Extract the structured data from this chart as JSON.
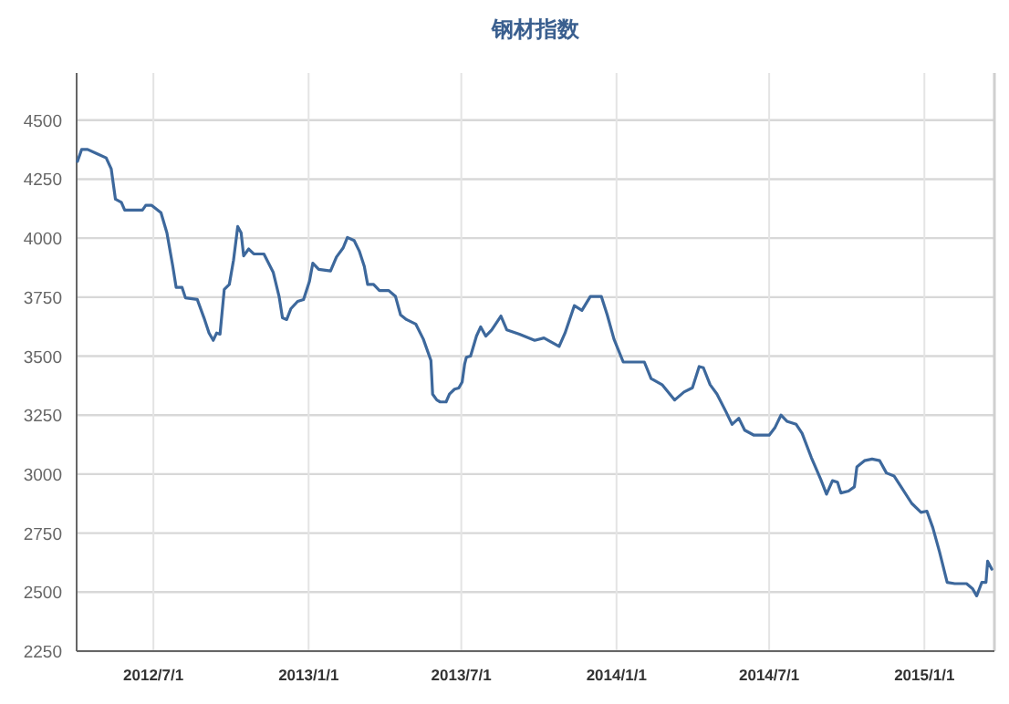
{
  "chart_data": {
    "type": "line",
    "title": "钢材指数",
    "color": "#3d689c",
    "grid": true,
    "xlim": [
      "2012-04-01",
      "2015-03-25"
    ],
    "ylim": [
      2250,
      4700
    ],
    "xticks": [
      {
        "value": "2012-07-01",
        "label": "2012/7/1"
      },
      {
        "value": "2013-01-01",
        "label": "2013/1/1"
      },
      {
        "value": "2013-07-01",
        "label": "2013/7/1"
      },
      {
        "value": "2014-01-01",
        "label": "2014/1/1"
      },
      {
        "value": "2014-07-01",
        "label": "2014/7/1"
      },
      {
        "value": "2015-01-01",
        "label": "2015/1/1"
      }
    ],
    "yticks": [
      2250,
      2500,
      2750,
      3000,
      3250,
      3500,
      3750,
      4000,
      4250,
      4500
    ],
    "x": [
      "2012-04-02",
      "2012-04-07",
      "2012-04-14",
      "2012-04-25",
      "2012-05-06",
      "2012-05-12",
      "2012-05-17",
      "2012-05-24",
      "2012-05-28",
      "2012-06-18",
      "2012-06-22",
      "2012-06-29",
      "2012-07-10",
      "2012-07-17",
      "2012-07-24",
      "2012-07-28",
      "2012-08-04",
      "2012-08-08",
      "2012-08-22",
      "2012-08-30",
      "2012-09-05",
      "2012-09-10",
      "2012-09-14",
      "2012-09-18",
      "2012-09-23",
      "2012-09-29",
      "2012-10-04",
      "2012-10-09",
      "2012-10-13",
      "2012-10-16",
      "2012-10-22",
      "2012-10-28",
      "2012-11-09",
      "2012-11-20",
      "2012-11-27",
      "2012-12-01",
      "2012-12-06",
      "2012-12-11",
      "2012-12-19",
      "2012-12-26",
      "2013-01-02",
      "2013-01-06",
      "2013-01-13",
      "2013-01-27",
      "2013-02-03",
      "2013-02-11",
      "2013-02-16",
      "2013-02-24",
      "2013-03-02",
      "2013-03-08",
      "2013-03-12",
      "2013-03-19",
      "2013-03-26",
      "2013-04-06",
      "2013-04-14",
      "2013-04-20",
      "2013-04-27",
      "2013-05-08",
      "2013-05-17",
      "2013-05-26",
      "2013-05-28",
      "2013-06-02",
      "2013-06-06",
      "2013-06-13",
      "2013-06-17",
      "2013-06-23",
      "2013-06-28",
      "2013-07-02",
      "2013-07-05",
      "2013-07-07",
      "2013-07-12",
      "2013-07-19",
      "2013-07-24",
      "2013-07-30",
      "2013-08-06",
      "2013-08-17",
      "2013-08-24",
      "2013-09-08",
      "2013-09-26",
      "2013-10-07",
      "2013-10-25",
      "2013-11-01",
      "2013-11-12",
      "2013-11-21",
      "2013-12-01",
      "2013-12-14",
      "2013-12-21",
      "2013-12-29",
      "2014-01-09",
      "2014-02-03",
      "2014-02-11",
      "2014-02-24",
      "2014-03-11",
      "2014-03-22",
      "2014-04-01",
      "2014-04-09",
      "2014-04-14",
      "2014-04-22",
      "2014-04-30",
      "2014-05-11",
      "2014-05-18",
      "2014-05-26",
      "2014-06-02",
      "2014-06-13",
      "2014-07-01",
      "2014-07-08",
      "2014-07-15",
      "2014-07-22",
      "2014-08-02",
      "2014-08-09",
      "2014-08-20",
      "2014-08-31",
      "2014-09-07",
      "2014-09-14",
      "2014-09-20",
      "2014-09-24",
      "2014-10-03",
      "2014-10-10",
      "2014-10-13",
      "2014-10-22",
      "2014-10-31",
      "2014-11-09",
      "2014-11-17",
      "2014-11-26",
      "2014-12-03",
      "2014-12-17",
      "2014-12-28",
      "2015-01-04",
      "2015-01-11",
      "2015-01-19",
      "2015-01-28",
      "2015-02-06",
      "2015-02-20",
      "2015-02-27",
      "2015-03-04",
      "2015-03-10",
      "2015-03-15",
      "2015-03-17",
      "2015-03-22"
    ],
    "values": [
      4325,
      4376,
      4376,
      4358,
      4340,
      4294,
      4165,
      4152,
      4119,
      4119,
      4139,
      4139,
      4108,
      4023,
      3881,
      3791,
      3791,
      3747,
      3740,
      3662,
      3598,
      3567,
      3598,
      3593,
      3783,
      3804,
      3907,
      4049,
      4023,
      3925,
      3954,
      3933,
      3933,
      3856,
      3753,
      3662,
      3655,
      3701,
      3732,
      3740,
      3817,
      3894,
      3868,
      3861,
      3920,
      3959,
      4003,
      3990,
      3946,
      3881,
      3804,
      3804,
      3778,
      3778,
      3753,
      3675,
      3655,
      3636,
      3572,
      3482,
      3339,
      3314,
      3306,
      3306,
      3339,
      3360,
      3365,
      3390,
      3467,
      3495,
      3500,
      3585,
      3624,
      3585,
      3611,
      3670,
      3611,
      3593,
      3567,
      3577,
      3541,
      3598,
      3714,
      3694,
      3753,
      3753,
      3675,
      3572,
      3475,
      3475,
      3405,
      3379,
      3314,
      3348,
      3366,
      3456,
      3451,
      3379,
      3340,
      3263,
      3211,
      3237,
      3186,
      3165,
      3165,
      3198,
      3250,
      3224,
      3211,
      3173,
      3070,
      2979,
      2915,
      2972,
      2966,
      2920,
      2928,
      2946,
      3031,
      3057,
      3064,
      3057,
      3005,
      2992,
      2954,
      2876,
      2838,
      2843,
      2773,
      2670,
      2541,
      2536,
      2536,
      2515,
      2484,
      2541,
      2541,
      2631,
      2597
    ]
  }
}
